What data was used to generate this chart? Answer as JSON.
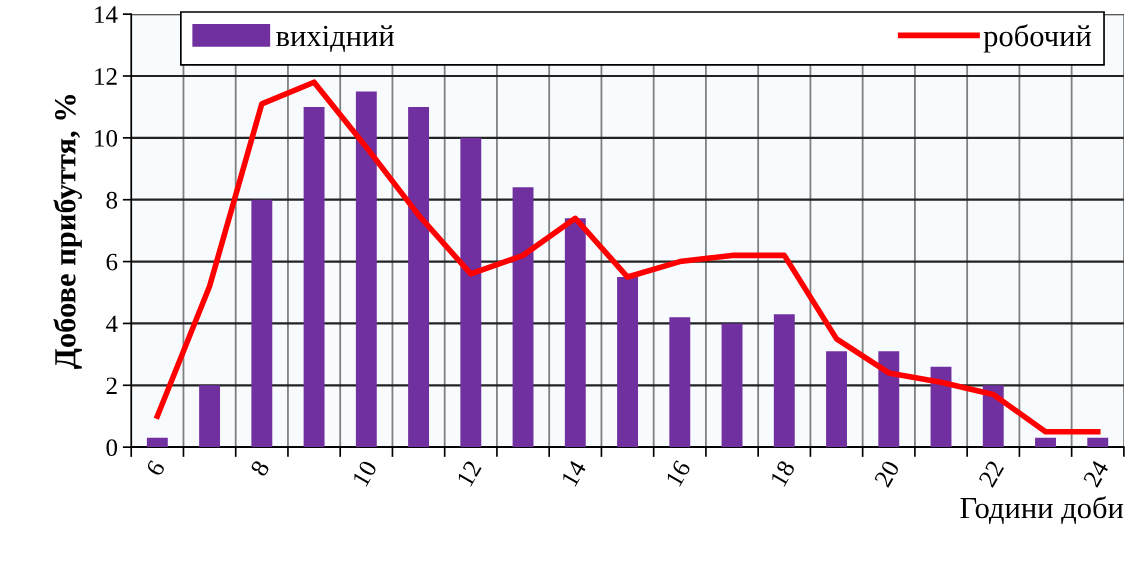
{
  "chart_data": {
    "type": "bar",
    "xlabel": "Години доби",
    "ylabel": "Добове прибуття, %",
    "categories": [
      "6",
      null,
      "8",
      null,
      "10",
      null,
      "12",
      null,
      "14",
      null,
      "16",
      null,
      "18",
      null,
      "20",
      null,
      "22",
      null,
      "24"
    ],
    "series": [
      {
        "name": "вихідний",
        "color": "#7030a0",
        "values": [
          0.3,
          2,
          8,
          11,
          11.5,
          11,
          10,
          8.4,
          7.4,
          5.5,
          4.2,
          4,
          4.3,
          3.1,
          3.1,
          2.6,
          2,
          0.3,
          0.3
        ]
      },
      {
        "name": "робочий",
        "type": "line",
        "color": "#ff0000",
        "marker": "none",
        "line_style": "solid",
        "values": [
          1,
          5.2,
          11.1,
          11.8,
          9.7,
          7.5,
          5.6,
          6.2,
          7.4,
          5.5,
          6,
          6.2,
          6.2,
          3.5,
          2.4,
          2.1,
          1.7,
          0.5,
          0.5
        ]
      }
    ],
    "ylim": [
      0,
      14
    ],
    "yticks": [
      0,
      2,
      4,
      6,
      8,
      10,
      12,
      14
    ],
    "grid": true,
    "legend": "top"
  }
}
